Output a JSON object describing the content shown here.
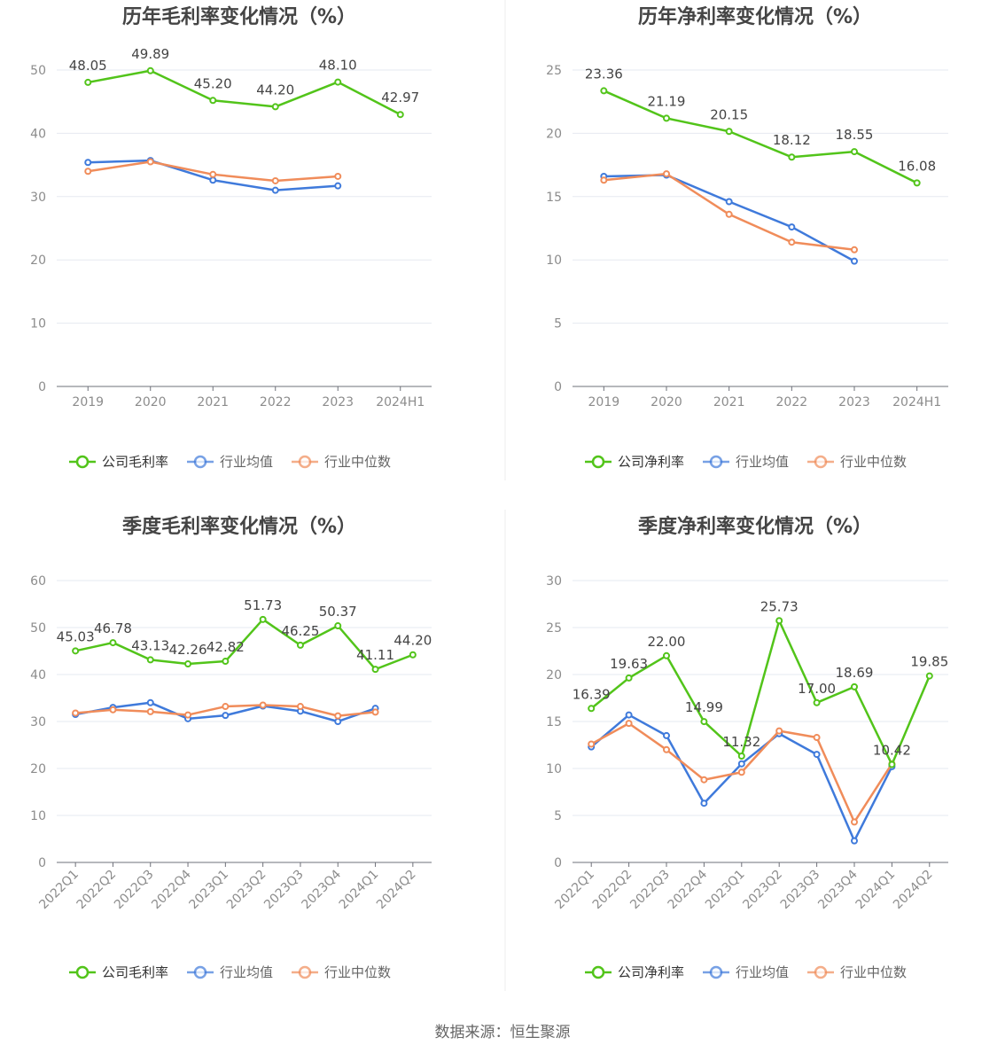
{
  "source_text": "数据来源：恒生聚源",
  "colors": {
    "company": "#52c41a",
    "avg": "#3f7adb",
    "median": "#f08c5a",
    "axis": "#8c8c8c",
    "grid": "#e6e9f0",
    "title": "#444444",
    "label": "#444444"
  },
  "chart_data": [
    {
      "type": "line",
      "title": "历年毛利率变化情况（%）",
      "categories": [
        "2019",
        "2020",
        "2021",
        "2022",
        "2023",
        "2024H1"
      ],
      "ylim": [
        0,
        50
      ],
      "yticks": [
        0,
        10,
        20,
        30,
        40,
        50
      ],
      "grid": true,
      "legend_position": "bottom",
      "series": [
        {
          "name": "公司毛利率",
          "role": "company",
          "values": [
            48.05,
            49.89,
            45.2,
            44.2,
            48.1,
            42.97
          ],
          "labels": [
            "48.05",
            "49.89",
            "45.20",
            "44.20",
            "48.10",
            "42.97"
          ]
        },
        {
          "name": "行业均值",
          "role": "avg",
          "values": [
            35.4,
            35.7,
            32.6,
            31.0,
            31.7,
            null
          ]
        },
        {
          "name": "行业中位数",
          "role": "median",
          "values": [
            34.0,
            35.5,
            33.5,
            32.5,
            33.2,
            null
          ]
        }
      ]
    },
    {
      "type": "line",
      "title": "历年净利率变化情况（%）",
      "categories": [
        "2019",
        "2020",
        "2021",
        "2022",
        "2023",
        "2024H1"
      ],
      "ylim": [
        0,
        25
      ],
      "yticks": [
        0,
        5,
        10,
        15,
        20,
        25
      ],
      "grid": true,
      "legend_position": "bottom",
      "series": [
        {
          "name": "公司净利率",
          "role": "company",
          "values": [
            23.36,
            21.19,
            20.15,
            18.12,
            18.55,
            16.08
          ],
          "labels": [
            "23.36",
            "21.19",
            "20.15",
            "18.12",
            "18.55",
            "16.08"
          ]
        },
        {
          "name": "行业均值",
          "role": "avg",
          "values": [
            16.6,
            16.7,
            14.6,
            12.6,
            9.9,
            null
          ]
        },
        {
          "name": "行业中位数",
          "role": "median",
          "values": [
            16.3,
            16.8,
            13.6,
            11.4,
            10.8,
            null
          ]
        }
      ]
    },
    {
      "type": "line",
      "title": "季度毛利率变化情况（%）",
      "categories": [
        "2022Q1",
        "2022Q2",
        "2022Q3",
        "2022Q4",
        "2023Q1",
        "2023Q2",
        "2023Q3",
        "2023Q4",
        "2024Q1",
        "2024Q2"
      ],
      "ylim": [
        0,
        60
      ],
      "yticks": [
        0,
        10,
        20,
        30,
        40,
        50,
        60
      ],
      "grid": true,
      "legend_position": "bottom",
      "series": [
        {
          "name": "公司毛利率",
          "role": "company",
          "values": [
            45.03,
            46.78,
            43.13,
            42.26,
            42.82,
            51.73,
            46.25,
            50.37,
            41.11,
            44.2
          ],
          "labels": [
            "45.03",
            "46.78",
            "43.13",
            "42.26",
            "42.82",
            "51.73",
            "46.25",
            "50.37",
            "41.11",
            "44.20"
          ]
        },
        {
          "name": "行业均值",
          "role": "avg",
          "values": [
            31.5,
            33.0,
            34.0,
            30.6,
            31.3,
            33.3,
            32.2,
            30.0,
            32.8,
            null
          ]
        },
        {
          "name": "行业中位数",
          "role": "median",
          "values": [
            31.8,
            32.5,
            32.1,
            31.4,
            33.2,
            33.5,
            33.2,
            31.2,
            32.0,
            null
          ]
        }
      ]
    },
    {
      "type": "line",
      "title": "季度净利率变化情况（%）",
      "categories": [
        "2022Q1",
        "2022Q2",
        "2022Q3",
        "2022Q4",
        "2023Q1",
        "2023Q2",
        "2023Q3",
        "2023Q4",
        "2024Q1",
        "2024Q2"
      ],
      "ylim": [
        0,
        30
      ],
      "yticks": [
        0,
        5,
        10,
        15,
        20,
        25,
        30
      ],
      "grid": true,
      "legend_position": "bottom",
      "series": [
        {
          "name": "公司净利率",
          "role": "company",
          "values": [
            16.39,
            19.63,
            22.0,
            14.99,
            11.32,
            25.73,
            17.0,
            18.69,
            10.42,
            19.85
          ],
          "labels": [
            "16.39",
            "19.63",
            "22.00",
            "14.99",
            "11.32",
            "25.73",
            "17.00",
            "18.69",
            "10.42",
            "19.85"
          ]
        },
        {
          "name": "行业均值",
          "role": "avg",
          "values": [
            12.3,
            15.7,
            13.5,
            6.3,
            10.5,
            13.7,
            11.5,
            2.3,
            10.2,
            null
          ]
        },
        {
          "name": "行业中位数",
          "role": "median",
          "values": [
            12.6,
            14.8,
            12.0,
            8.8,
            9.6,
            14.0,
            13.3,
            4.3,
            10.5,
            null
          ]
        }
      ]
    }
  ]
}
